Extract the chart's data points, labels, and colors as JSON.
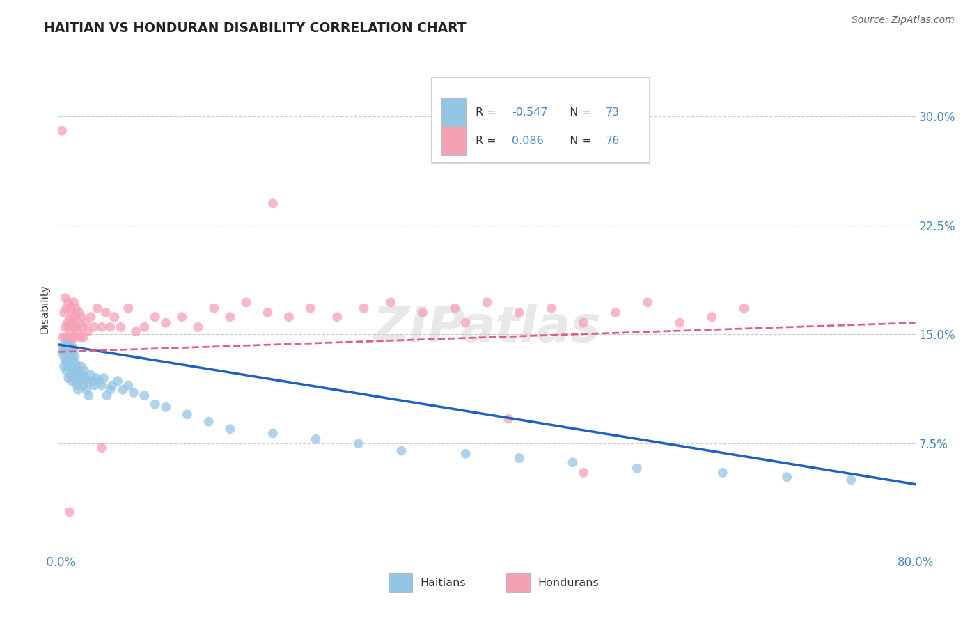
{
  "title": "HAITIAN VS HONDURAN DISABILITY CORRELATION CHART",
  "source": "Source: ZipAtlas.com",
  "ylabel": "Disability",
  "ytick_vals": [
    0.075,
    0.15,
    0.225,
    0.3
  ],
  "ytick_labels": [
    "7.5%",
    "15.0%",
    "22.5%",
    "30.0%"
  ],
  "xlim": [
    0.0,
    0.8
  ],
  "ylim": [
    0.0,
    0.335
  ],
  "haitian_R": -0.547,
  "haitian_N": 73,
  "honduran_R": 0.086,
  "honduran_N": 76,
  "haitian_color": "#93C5E5",
  "honduran_color": "#F5A0B5",
  "haitian_line_color": "#2060C0",
  "honduran_line_color": "#E06080",
  "watermark": "ZIPatlas",
  "haitian_line_x0": 0.0,
  "haitian_line_y0": 0.143,
  "haitian_line_x1": 0.8,
  "haitian_line_y1": 0.047,
  "honduran_line_x0": 0.0,
  "honduran_line_y0": 0.138,
  "honduran_line_x1": 0.8,
  "honduran_line_y1": 0.158,
  "haitian_x": [
    0.003,
    0.004,
    0.005,
    0.005,
    0.006,
    0.006,
    0.007,
    0.007,
    0.008,
    0.008,
    0.009,
    0.009,
    0.01,
    0.01,
    0.01,
    0.011,
    0.011,
    0.012,
    0.012,
    0.012,
    0.013,
    0.013,
    0.014,
    0.014,
    0.015,
    0.015,
    0.016,
    0.016,
    0.017,
    0.017,
    0.018,
    0.018,
    0.019,
    0.02,
    0.021,
    0.022,
    0.023,
    0.024,
    0.025,
    0.026,
    0.027,
    0.028,
    0.03,
    0.032,
    0.033,
    0.035,
    0.038,
    0.04,
    0.042,
    0.045,
    0.048,
    0.05,
    0.055,
    0.06,
    0.065,
    0.07,
    0.08,
    0.09,
    0.1,
    0.12,
    0.14,
    0.16,
    0.2,
    0.24,
    0.28,
    0.32,
    0.38,
    0.43,
    0.48,
    0.54,
    0.62,
    0.68,
    0.74
  ],
  "haitian_y": [
    0.138,
    0.142,
    0.135,
    0.128,
    0.14,
    0.132,
    0.136,
    0.125,
    0.143,
    0.13,
    0.128,
    0.12,
    0.142,
    0.135,
    0.128,
    0.138,
    0.122,
    0.135,
    0.128,
    0.118,
    0.132,
    0.125,
    0.14,
    0.12,
    0.135,
    0.125,
    0.13,
    0.118,
    0.128,
    0.115,
    0.125,
    0.112,
    0.122,
    0.118,
    0.128,
    0.122,
    0.115,
    0.125,
    0.12,
    0.112,
    0.118,
    0.108,
    0.122,
    0.118,
    0.115,
    0.12,
    0.118,
    0.115,
    0.12,
    0.108,
    0.112,
    0.115,
    0.118,
    0.112,
    0.115,
    0.11,
    0.108,
    0.102,
    0.1,
    0.095,
    0.09,
    0.085,
    0.082,
    0.078,
    0.075,
    0.07,
    0.068,
    0.065,
    0.062,
    0.058,
    0.055,
    0.052,
    0.05
  ],
  "honduran_x": [
    0.003,
    0.004,
    0.005,
    0.005,
    0.006,
    0.006,
    0.007,
    0.007,
    0.008,
    0.008,
    0.009,
    0.009,
    0.01,
    0.01,
    0.011,
    0.011,
    0.012,
    0.012,
    0.013,
    0.013,
    0.014,
    0.014,
    0.015,
    0.015,
    0.016,
    0.016,
    0.017,
    0.018,
    0.019,
    0.02,
    0.021,
    0.022,
    0.023,
    0.025,
    0.027,
    0.03,
    0.033,
    0.036,
    0.04,
    0.044,
    0.048,
    0.052,
    0.058,
    0.065,
    0.072,
    0.08,
    0.09,
    0.1,
    0.115,
    0.13,
    0.145,
    0.16,
    0.175,
    0.195,
    0.215,
    0.235,
    0.26,
    0.285,
    0.31,
    0.34,
    0.37,
    0.4,
    0.43,
    0.46,
    0.49,
    0.52,
    0.55,
    0.58,
    0.61,
    0.64,
    0.42,
    0.2,
    0.38,
    0.49,
    0.04,
    0.01
  ],
  "honduran_y": [
    0.29,
    0.148,
    0.138,
    0.165,
    0.155,
    0.175,
    0.148,
    0.168,
    0.158,
    0.145,
    0.172,
    0.155,
    0.16,
    0.145,
    0.168,
    0.152,
    0.158,
    0.142,
    0.165,
    0.148,
    0.172,
    0.155,
    0.162,
    0.148,
    0.168,
    0.155,
    0.16,
    0.152,
    0.165,
    0.148,
    0.162,
    0.155,
    0.148,
    0.158,
    0.152,
    0.162,
    0.155,
    0.168,
    0.155,
    0.165,
    0.155,
    0.162,
    0.155,
    0.168,
    0.152,
    0.155,
    0.162,
    0.158,
    0.162,
    0.155,
    0.168,
    0.162,
    0.172,
    0.165,
    0.162,
    0.168,
    0.162,
    0.168,
    0.172,
    0.165,
    0.168,
    0.172,
    0.165,
    0.168,
    0.158,
    0.165,
    0.172,
    0.158,
    0.162,
    0.168,
    0.092,
    0.24,
    0.158,
    0.055,
    0.072,
    0.028
  ]
}
